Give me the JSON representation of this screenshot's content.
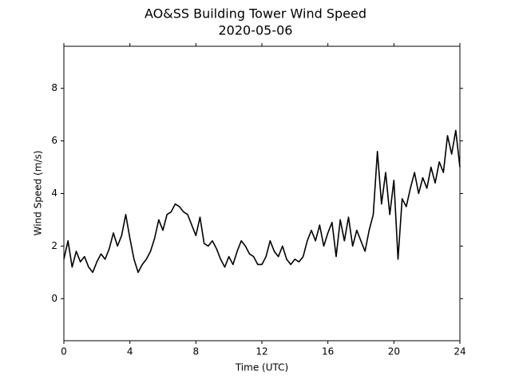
{
  "chart_data": {
    "type": "line",
    "title": "AO&SS Building Tower Wind Speed",
    "subtitle": "2020-05-06",
    "xlabel": "Time (UTC)",
    "ylabel": "Wind Speed (m/s)",
    "x": [
      0,
      0.25,
      0.5,
      0.75,
      1,
      1.25,
      1.5,
      1.75,
      2,
      2.25,
      2.5,
      2.75,
      3,
      3.25,
      3.5,
      3.75,
      4,
      4.25,
      4.5,
      4.75,
      5,
      5.25,
      5.5,
      5.75,
      6,
      6.25,
      6.5,
      6.75,
      7,
      7.25,
      7.5,
      7.75,
      8,
      8.25,
      8.5,
      8.75,
      9,
      9.25,
      9.5,
      9.75,
      10,
      10.25,
      10.5,
      10.75,
      11,
      11.25,
      11.5,
      11.75,
      12,
      12.25,
      12.5,
      12.75,
      13,
      13.25,
      13.5,
      13.75,
      14,
      14.25,
      14.5,
      14.75,
      15,
      15.25,
      15.5,
      15.75,
      16,
      16.25,
      16.5,
      16.75,
      17,
      17.25,
      17.5,
      17.75,
      18,
      18.25,
      18.5,
      18.75,
      19,
      19.25,
      19.5,
      19.75,
      20,
      20.25,
      20.5,
      20.75,
      21,
      21.25,
      21.5,
      21.75,
      22,
      22.25,
      22.5,
      22.75,
      23,
      23.25,
      23.5,
      23.75,
      24
    ],
    "series": [
      {
        "name": "Wind Speed",
        "color": "#000000",
        "values": [
          1.5,
          2.2,
          1.2,
          1.8,
          1.4,
          1.6,
          1.2,
          1.0,
          1.4,
          1.7,
          1.5,
          1.9,
          2.5,
          2.0,
          2.4,
          3.2,
          2.3,
          1.5,
          1.0,
          1.3,
          1.5,
          1.8,
          2.3,
          3.0,
          2.6,
          3.2,
          3.3,
          3.6,
          3.5,
          3.3,
          3.2,
          2.8,
          2.4,
          3.1,
          2.1,
          2.0,
          2.2,
          1.9,
          1.5,
          1.2,
          1.6,
          1.3,
          1.8,
          2.2,
          2.0,
          1.7,
          1.6,
          1.3,
          1.3,
          1.6,
          2.2,
          1.8,
          1.6,
          2.0,
          1.5,
          1.3,
          1.5,
          1.4,
          1.6,
          2.2,
          2.6,
          2.2,
          2.8,
          2.0,
          2.5,
          2.9,
          1.6,
          3.0,
          2.2,
          3.1,
          2.0,
          2.6,
          2.2,
          1.8,
          2.6,
          3.2,
          5.6,
          3.6,
          4.8,
          3.2,
          4.5,
          1.5,
          3.8,
          3.5,
          4.2,
          4.8,
          4.0,
          4.6,
          4.2,
          5.0,
          4.4,
          5.2,
          4.8,
          6.2,
          5.5,
          6.4,
          5.0
        ]
      }
    ],
    "xlim": [
      0,
      24
    ],
    "xticks": [
      0,
      4,
      8,
      12,
      16,
      20,
      24
    ],
    "ylim": [
      -1.6,
      9.6
    ],
    "yticks": [
      0,
      2,
      4,
      6,
      8
    ]
  }
}
